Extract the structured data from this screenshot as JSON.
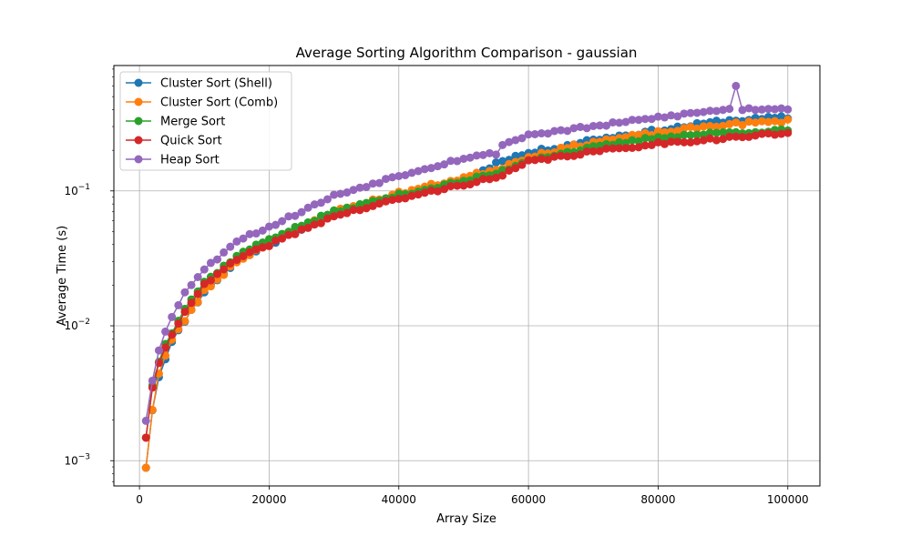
{
  "chart_data": {
    "type": "line",
    "title": "Average Sorting Algorithm Comparison - gaussian",
    "xlabel": "Array Size",
    "ylabel": "Average Time (s)",
    "xlim": [
      -3950,
      104950
    ],
    "ylim": [
      0.00065,
      0.85
    ],
    "yscale": "log",
    "grid": true,
    "legend_position": "top-left",
    "x_ticks": [
      0,
      20000,
      40000,
      60000,
      80000,
      100000
    ],
    "x_tick_labels": [
      "0",
      "20000",
      "40000",
      "60000",
      "80000",
      "100000"
    ],
    "y_ticks": [
      0.001,
      0.01,
      0.1
    ],
    "y_tick_labels": [
      "10",
      "10",
      "10"
    ],
    "y_tick_exponents": [
      "−3",
      "−2",
      "−1"
    ],
    "x": {
      "start": 1000,
      "step": 1000,
      "count": 100
    },
    "anchors_x": [
      1000,
      2000,
      3000,
      4000,
      5000,
      7000,
      10000,
      15000,
      20000,
      30000,
      40000,
      50000,
      55000,
      56000,
      60000,
      70000,
      80000,
      90000,
      100000
    ],
    "series": [
      {
        "name": "Cluster Sort (Shell)",
        "color": "#1f77b4",
        "seed": 11,
        "jitter": 0.03,
        "anchors_y": [
          0.0009,
          0.0024,
          0.0042,
          0.0058,
          0.0075,
          0.011,
          0.018,
          0.03,
          0.04,
          0.068,
          0.093,
          0.12,
          0.16,
          0.17,
          0.19,
          0.24,
          0.28,
          0.33,
          0.35
        ]
      },
      {
        "name": "Cluster Sort (Comb)",
        "color": "#ff7f0e",
        "seed": 23,
        "jitter": 0.03,
        "anchors_y": [
          0.0009,
          0.0024,
          0.0044,
          0.006,
          0.0078,
          0.011,
          0.018,
          0.03,
          0.041,
          0.07,
          0.096,
          0.125,
          0.145,
          0.15,
          0.18,
          0.23,
          0.27,
          0.31,
          0.33
        ]
      },
      {
        "name": "Merge Sort",
        "color": "#2ca02c",
        "seed": 37,
        "jitter": 0.025,
        "anchors_y": [
          0.0015,
          0.0036,
          0.0055,
          0.0075,
          0.009,
          0.0135,
          0.021,
          0.033,
          0.044,
          0.07,
          0.093,
          0.118,
          0.135,
          0.14,
          0.17,
          0.21,
          0.25,
          0.27,
          0.28
        ]
      },
      {
        "name": "Quick Sort",
        "color": "#d62728",
        "seed": 41,
        "jitter": 0.025,
        "anchors_y": [
          0.0015,
          0.0034,
          0.0052,
          0.007,
          0.0085,
          0.013,
          0.02,
          0.031,
          0.04,
          0.065,
          0.087,
          0.112,
          0.125,
          0.13,
          0.165,
          0.195,
          0.225,
          0.245,
          0.27
        ]
      },
      {
        "name": "Heap Sort",
        "color": "#9467bd",
        "seed": 53,
        "jitter": 0.025,
        "anchors_y": [
          0.002,
          0.004,
          0.0067,
          0.009,
          0.0115,
          0.018,
          0.026,
          0.043,
          0.054,
          0.092,
          0.13,
          0.175,
          0.19,
          0.22,
          0.26,
          0.3,
          0.35,
          0.4,
          0.41
        ],
        "overrides": {
          "92000": 0.6
        }
      }
    ]
  }
}
